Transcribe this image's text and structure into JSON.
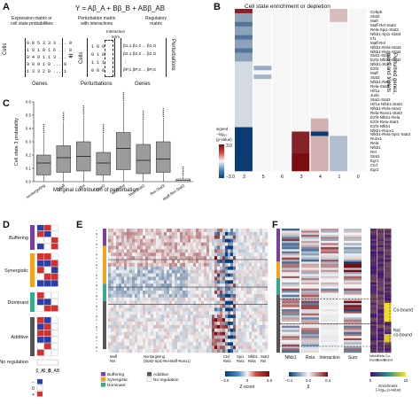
{
  "panels": {
    "a": "A",
    "b": "B",
    "c": "C",
    "d": "D",
    "e": "E",
    "f": "F"
  },
  "panel_a": {
    "equation": "Y = Aβ_A + Bβ_B + ABβ_AB",
    "block1_title": "Expression matrix or\ncell state probabilities",
    "block2_title": "Perturbation matrix\nwith interactions",
    "block3_title": "Regulatory\nmatrix",
    "interaction_term": "Interaction\nterm",
    "matrix_rows": [
      "0.8 5 3 3 3 ... 0",
      "1 0 1 0 1 6 ... 0",
      "0 4 0 1 1 3 ... 4",
      "0 0 0 1 0 ... 0",
      "1 3 3 2 0 ... 1"
    ],
    "pert_rows": [
      "1 0 0",
      "0 1 0",
      "1 1 1",
      "0 0 0"
    ],
    "reg_rows": [
      "β1,1 β1,2 ... β1,G",
      "β2,1 β2,2 ... β2,G",
      "⋮",
      "βP,1 βP,2 ... βP,G"
    ],
    "equals": "=",
    "cells_label": "Cells",
    "genes_label": "Genes",
    "perturbations_label": "Perturbations",
    "perturbations_vertical": "Perturbations"
  },
  "panel_b": {
    "title": "Cell state enrichment or depletion",
    "ylabel": "Perturbed genes,\npairs and triplets",
    "gene_labels": [
      "Cebpb",
      "Stat2",
      "Mafr",
      "Maff-Rel-Stat2",
      "Rela-Spi1-Stat3",
      "Nfkb1-Spi1-Stat3",
      "Irf1",
      "Maff-Rel",
      "Nfkb1-Rela-Stat3",
      "Nfkb1-Rela-Stat2",
      "Stat1-Stat2",
      "E2f4-Nfkb1-Stat2",
      "Nfkb1-Stat3",
      "E2f4",
      "Maff",
      "Stat3",
      "Nfkb1-Rela",
      "Rela-Stat3",
      "Hif1a",
      "Junb",
      "Stat1-Stat3",
      "Hif1a-Nfkb1-Stat3",
      "Nfkb1-Rela-Stat1",
      "Rela-Runx1-Stat3",
      "E2f4-Nfkb1-Rela",
      "E2f4-Rela-Stat1",
      "E2f4-Nfkb1",
      "Nfkb1-Runx1",
      "Nfkb1-Rela-Spi1-Stat3",
      "Runx1",
      "Rela",
      "Nfkb1",
      "Rel",
      "Stat1",
      "Egr1",
      "Ctcf",
      "Egr2"
    ],
    "columns": [
      "2",
      "5",
      "6",
      "3",
      "4",
      "1",
      "0"
    ],
    "legend_title": "signed\n−log₁₀\n(p-value)",
    "legend_max": "3.0",
    "legend_min": "−3.0"
  },
  "panel_c": {
    "ylabel": "Cell state 3 probability",
    "xlabel": "Marginal contribution of perturbation",
    "ticks": [
      "0.0",
      "0.1",
      "0.2",
      "0.3",
      "0.4",
      "0.5",
      "0.6"
    ],
    "categories": [
      "nontargeting",
      "Maff",
      "Rel",
      "Stat2",
      "Maff-Rel",
      "Maff-Stat2",
      "Rel-Stat2",
      "Maff-Rel-Stat2"
    ]
  },
  "panel_d": {
    "categories": [
      "Buffering",
      "Synergistic",
      "Dominant",
      "Additive",
      "No regulation"
    ],
    "beta_labels": [
      "β_A",
      "β_B",
      "β_AB"
    ],
    "legend_minus": "−",
    "legend_zero": "0",
    "legend_plus": "+"
  },
  "panel_e": {
    "xtick_labels": [
      "Maff\nRel",
      "Nontargeting\n(Stat2-Spi1-Rel-Maff-Runx1)",
      "Ctcf\nRela",
      "Spi1\nRela",
      "Nfkb1\nRela",
      "Stat2\nRel"
    ],
    "colorbar_label": "Z-score",
    "colorbar_min": "−3.0",
    "colorbar_mid": "0",
    "colorbar_max": "3.0",
    "legend": [
      "Buffering",
      "Synergistic",
      "Dominant",
      "Additive",
      "No regulation"
    ]
  },
  "panel_f": {
    "xlabels": [
      "Nfkb1",
      "Rela",
      "Interaction",
      "Sum",
      "Nfkb1\nbound",
      "Rela\nbound",
      "Co-\nbound"
    ],
    "beta_label": "β",
    "beta_min": "−0.4",
    "beta_mid": "0.0",
    "beta_max": "0.4",
    "enrichment_label": "Enrichment\n(−log₁₀ p-value)",
    "enrich_min": "0",
    "enrich_max": "10",
    "right_labels": [
      "Co-bound",
      "Not\nco-bound"
    ]
  },
  "colors": {
    "buffering": "#7b3fa0",
    "synergistic": "#f2a51c",
    "dominant": "#3aa88a",
    "additive": "#555555",
    "no_regulation": "#ffffff",
    "red": "#c6252a",
    "blue": "#1f5fa8",
    "navy": "#0b3b73",
    "dark_red": "#7a0c12"
  }
}
